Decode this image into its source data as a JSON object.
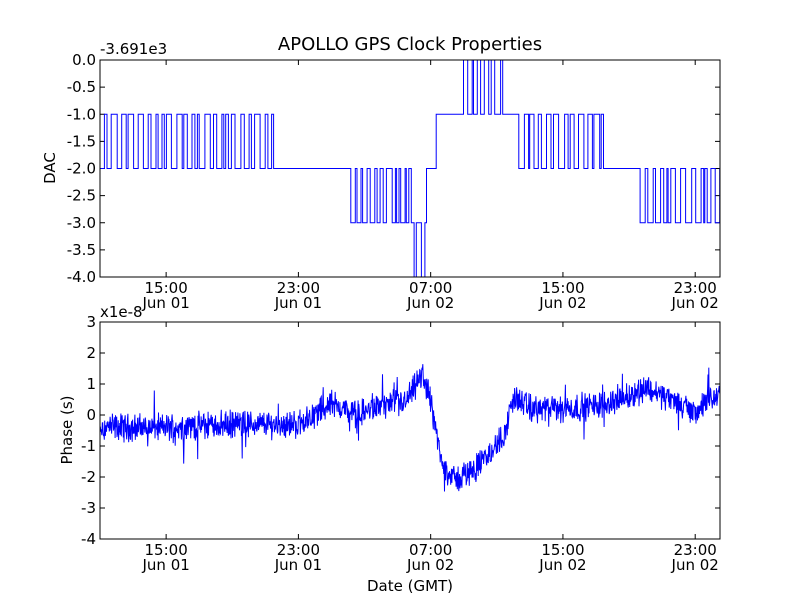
{
  "chart_data": [
    {
      "type": "line",
      "title": "APOLLO GPS Clock Properties",
      "offset_label": "-3.691e3",
      "ylabel": "DAC",
      "xlabel": "",
      "ylim": [
        -4.0,
        0.0
      ],
      "xlim": [
        "2015-06-01 11:00",
        "2015-06-03 00:30"
      ],
      "yticks": [
        "0.0",
        "-0.5",
        "-1.0",
        "-1.5",
        "-2.0",
        "-2.5",
        "-3.0",
        "-3.5",
        "-4.0"
      ],
      "yvalues": [
        0,
        -0.5,
        -1,
        -1.5,
        -2,
        -2.5,
        -3,
        -3.5,
        -4
      ],
      "xticks": [
        {
          "time": "15:00",
          "date": "Jun 01"
        },
        {
          "time": "23:00",
          "date": "Jun 01"
        },
        {
          "time": "07:00",
          "date": "Jun 02"
        },
        {
          "time": "15:00",
          "date": "Jun 02"
        },
        {
          "time": "23:00",
          "date": "Jun 02"
        }
      ],
      "series": [
        {
          "color": "#0000ff",
          "segments": [
            {
              "from": "2015-06-01 11:00",
              "to": "2015-06-01 17:00",
              "levels": [
                -2,
                -1
              ],
              "pattern": "toggle"
            },
            {
              "from": "2015-06-01 17:00",
              "to": "2015-06-01 21:30",
              "levels": [
                -2,
                -1
              ],
              "pattern": "toggle"
            },
            {
              "from": "2015-06-01 21:30",
              "to": "2015-06-02 02:10",
              "levels": [
                -2
              ],
              "pattern": "flat"
            },
            {
              "from": "2015-06-02 02:10",
              "to": "2015-06-02 06:00",
              "levels": [
                -3,
                -2
              ],
              "pattern": "toggle"
            },
            {
              "from": "2015-06-02 06:00",
              "to": "2015-06-02 06:45",
              "levels": [
                -4,
                -3
              ],
              "pattern": "toggle"
            },
            {
              "from": "2015-06-02 06:45",
              "to": "2015-06-02 07:20",
              "levels": [
                -2
              ],
              "pattern": "flat"
            },
            {
              "from": "2015-06-02 07:20",
              "to": "2015-06-02 08:40",
              "levels": [
                -1
              ],
              "pattern": "flat"
            },
            {
              "from": "2015-06-02 08:40",
              "to": "2015-06-02 11:30",
              "levels": [
                -1,
                0
              ],
              "pattern": "toggle"
            },
            {
              "from": "2015-06-02 11:30",
              "to": "2015-06-02 12:20",
              "levels": [
                -1
              ],
              "pattern": "flat"
            },
            {
              "from": "2015-06-02 12:20",
              "to": "2015-06-02 17:30",
              "levels": [
                -2,
                -1
              ],
              "pattern": "toggle"
            },
            {
              "from": "2015-06-02 17:30",
              "to": "2015-06-02 19:40",
              "levels": [
                -2
              ],
              "pattern": "flat"
            },
            {
              "from": "2015-06-02 19:40",
              "to": "2015-06-03 00:30",
              "levels": [
                -3,
                -2
              ],
              "pattern": "toggle"
            }
          ]
        }
      ]
    },
    {
      "type": "line",
      "title": "",
      "offset_label": "x1e-8",
      "ylabel": "Phase (s)",
      "xlabel": "Date (GMT)",
      "ylim": [
        -4,
        3
      ],
      "xlim": [
        "2015-06-01 11:00",
        "2015-06-03 00:30"
      ],
      "yticks": [
        "3",
        "2",
        "1",
        "0",
        "-1",
        "-2",
        "-3",
        "-4"
      ],
      "yvalues": [
        3,
        2,
        1,
        0,
        -1,
        -2,
        -3,
        -4
      ],
      "xticks": [
        {
          "time": "15:00",
          "date": "Jun 01"
        },
        {
          "time": "23:00",
          "date": "Jun 01"
        },
        {
          "time": "07:00",
          "date": "Jun 02"
        },
        {
          "time": "15:00",
          "date": "Jun 02"
        },
        {
          "time": "23:00",
          "date": "Jun 02"
        }
      ],
      "series": [
        {
          "color": "#0000ff",
          "trend": [
            [
              "2015-06-01 11:00",
              -0.4
            ],
            [
              "2015-06-01 15:00",
              -0.4
            ],
            [
              "2015-06-01 19:00",
              -0.3
            ],
            [
              "2015-06-01 23:00",
              -0.3
            ],
            [
              "2015-06-02 01:00",
              0.4
            ],
            [
              "2015-06-02 02:30",
              0.0
            ],
            [
              "2015-06-02 04:00",
              0.3
            ],
            [
              "2015-06-02 05:30",
              0.4
            ],
            [
              "2015-06-02 06:30",
              1.3
            ],
            [
              "2015-06-02 07:00",
              0.5
            ],
            [
              "2015-06-02 07:40",
              -1.6
            ],
            [
              "2015-06-02 08:30",
              -2.1
            ],
            [
              "2015-06-02 09:30",
              -1.8
            ],
            [
              "2015-06-02 10:30",
              -1.3
            ],
            [
              "2015-06-02 11:30",
              -0.6
            ],
            [
              "2015-06-02 12:00",
              0.6
            ],
            [
              "2015-06-02 13:00",
              0.2
            ],
            [
              "2015-06-02 15:00",
              0.2
            ],
            [
              "2015-06-02 17:00",
              0.3
            ],
            [
              "2015-06-02 19:00",
              0.6
            ],
            [
              "2015-06-02 20:00",
              0.9
            ],
            [
              "2015-06-02 21:30",
              0.5
            ],
            [
              "2015-06-02 23:00",
              0.1
            ],
            [
              "2015-06-03 00:30",
              0.7
            ]
          ],
          "noise_amplitude": 0.35
        }
      ]
    }
  ]
}
